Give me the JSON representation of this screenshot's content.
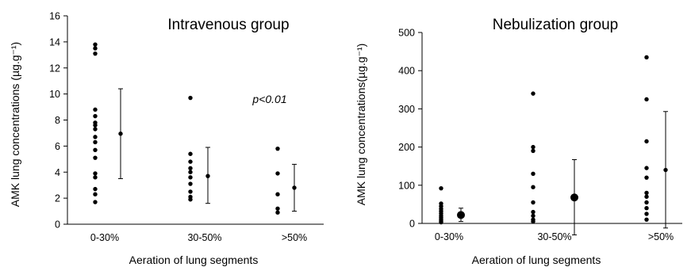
{
  "chart_data": [
    {
      "type": "scatter",
      "title": "Intravenous group",
      "xlabel": "Aeration of lung segments",
      "ylabel": "AMK lung concentrations (µg.g⁻¹)",
      "categories": [
        "0-30%",
        "30-50%",
        ">50%"
      ],
      "ylim": [
        0,
        16
      ],
      "yticks": [
        0,
        2,
        4,
        6,
        8,
        10,
        12,
        14,
        16
      ],
      "annotation": "p<0.01",
      "points": [
        [
          13.8,
          13.5,
          13.1,
          8.8,
          8.3,
          7.8,
          7.6,
          7.3,
          6.7,
          6.3,
          5.7,
          5.1,
          3.9,
          3.6,
          2.7,
          2.3,
          1.7
        ],
        [
          9.7,
          5.4,
          4.8,
          4.3,
          4.0,
          3.6,
          3.1,
          2.5,
          2.1,
          1.9
        ],
        [
          5.8,
          3.9,
          2.3,
          1.2,
          0.9
        ]
      ],
      "summary": [
        {
          "mean": 6.95,
          "low": 3.5,
          "high": 10.4
        },
        {
          "mean": 3.7,
          "low": 1.6,
          "high": 5.9
        },
        {
          "mean": 2.8,
          "low": 1.0,
          "high": 4.6
        }
      ]
    },
    {
      "type": "scatter",
      "title": "Nebulization group",
      "xlabel": "Aeration of lung segments",
      "ylabel": "AMK lung concentrations(µg.g⁻¹)",
      "categories": [
        "0-30%",
        "30-50%",
        ">50%"
      ],
      "ylim": [
        0,
        500
      ],
      "yticks": [
        0,
        100,
        200,
        300,
        400,
        500
      ],
      "points": [
        [
          92,
          52,
          45,
          38,
          32,
          26,
          20,
          15,
          10,
          6,
          3
        ],
        [
          340,
          200,
          190,
          130,
          95,
          55,
          30,
          20,
          10,
          5
        ],
        [
          435,
          325,
          215,
          145,
          120,
          80,
          70,
          55,
          40,
          25,
          10
        ]
      ],
      "summary": [
        {
          "mean": 22,
          "low": 5,
          "high": 40
        },
        {
          "mean": 68,
          "low": -30,
          "high": 167
        },
        {
          "mean": 140,
          "low": -12,
          "high": 293
        }
      ]
    }
  ]
}
